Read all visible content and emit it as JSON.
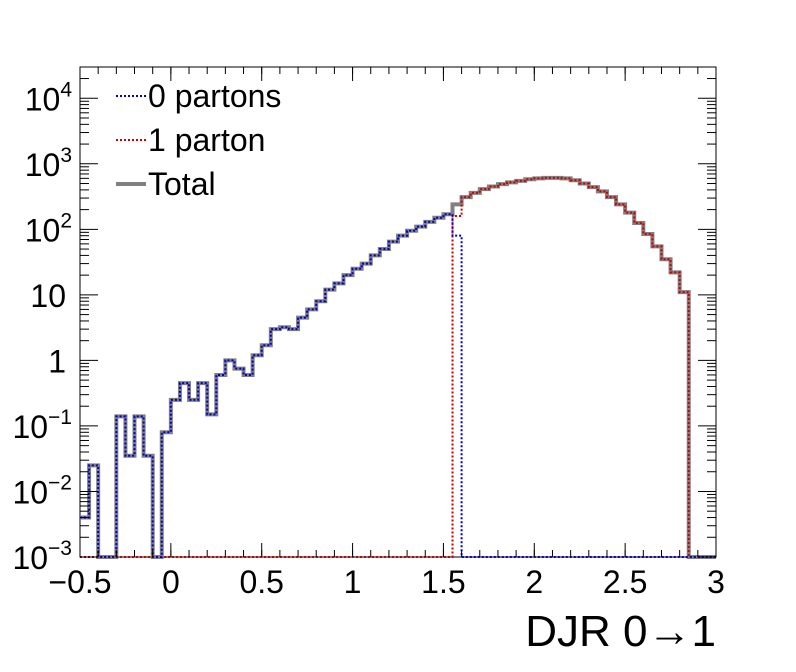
{
  "chart_data": {
    "type": "line",
    "step": true,
    "xlabel": "DJR 0→1",
    "ylabel": "",
    "xlim": [
      -0.5,
      3.0
    ],
    "ylim": [
      0.001,
      30000
    ],
    "log_y": true,
    "grid": false,
    "legend_position": "top-left",
    "x_ticks": [
      {
        "value": -0.5,
        "label": "−0.5"
      },
      {
        "value": 0,
        "label": "0"
      },
      {
        "value": 0.5,
        "label": "0.5"
      },
      {
        "value": 1,
        "label": "1"
      },
      {
        "value": 1.5,
        "label": "1.5"
      },
      {
        "value": 2,
        "label": "2"
      },
      {
        "value": 2.5,
        "label": "2.5"
      },
      {
        "value": 3,
        "label": "3"
      }
    ],
    "y_ticks": [
      {
        "value": 0.001,
        "base": "10",
        "exp": "−3"
      },
      {
        "value": 0.01,
        "base": "10",
        "exp": "−2"
      },
      {
        "value": 0.1,
        "base": "10",
        "exp": "−1"
      },
      {
        "value": 1,
        "base": "1",
        "exp": ""
      },
      {
        "value": 10,
        "base": "10",
        "exp": ""
      },
      {
        "value": 100,
        "base": "10",
        "exp": "2"
      },
      {
        "value": 1000,
        "base": "10",
        "exp": "3"
      },
      {
        "value": 10000,
        "base": "10",
        "exp": "4"
      }
    ],
    "bins": {
      "start": -0.5,
      "width": 0.05,
      "count": 70
    },
    "series": [
      {
        "name": "0 partons",
        "color": "#0000cc",
        "dash": "dotted",
        "values": [
          0.004,
          0.025,
          0.001,
          0.001,
          0.14,
          0.035,
          0.14,
          0.035,
          0.001,
          0.08,
          0.25,
          0.45,
          0.25,
          0.45,
          0.15,
          0.6,
          1.0,
          0.75,
          0.6,
          1.2,
          1.7,
          3.0,
          3.2,
          3.0,
          4.5,
          6.0,
          8.0,
          12.0,
          15.0,
          20.0,
          25.0,
          30.0,
          40.0,
          50.0,
          65.0,
          80.0,
          95.0,
          110.0,
          130.0,
          150.0,
          170.0,
          80.0,
          0.001,
          0.001,
          0.001,
          0.001,
          0.001,
          0.001,
          0.001,
          0.001,
          0.001,
          0.001,
          0.001,
          0.001,
          0.001,
          0.001,
          0.001,
          0.001,
          0.001,
          0.001,
          0.001,
          0.001,
          0.001,
          0.001,
          0.001,
          0.001,
          0.001,
          0.001,
          0.001,
          0.001
        ]
      },
      {
        "name": "1 parton",
        "color": "#cc0000",
        "dash": "dotted",
        "values": [
          0.001,
          0.001,
          0.001,
          0.001,
          0.001,
          0.001,
          0.001,
          0.001,
          0.001,
          0.001,
          0.001,
          0.001,
          0.001,
          0.001,
          0.001,
          0.001,
          0.001,
          0.001,
          0.001,
          0.001,
          0.001,
          0.001,
          0.001,
          0.001,
          0.001,
          0.001,
          0.001,
          0.001,
          0.001,
          0.001,
          0.001,
          0.001,
          0.001,
          0.001,
          0.001,
          0.001,
          0.001,
          0.001,
          0.001,
          0.001,
          0.001,
          160.0,
          310.0,
          360.0,
          410.0,
          450.0,
          490.0,
          520.0,
          550.0,
          580.0,
          600.0,
          610.0,
          610.0,
          600.0,
          560.0,
          500.0,
          440.0,
          380.0,
          310.0,
          240.0,
          180.0,
          125.0,
          85.0,
          55.0,
          35.0,
          22.0,
          11.0,
          0.001,
          0.001,
          0.001
        ]
      },
      {
        "name": "Total",
        "color": "#808080",
        "dash": "solid",
        "values": [
          0.004,
          0.025,
          0.001,
          0.001,
          0.14,
          0.035,
          0.14,
          0.035,
          0.001,
          0.08,
          0.25,
          0.45,
          0.25,
          0.45,
          0.15,
          0.6,
          1.0,
          0.75,
          0.6,
          1.2,
          1.7,
          3.0,
          3.2,
          3.0,
          4.5,
          6.0,
          8.0,
          12.0,
          15.0,
          20.0,
          25.0,
          30.0,
          40.0,
          50.0,
          65.0,
          80.0,
          95.0,
          110.0,
          130.0,
          150.0,
          170.0,
          240.0,
          310.0,
          360.0,
          410.0,
          450.0,
          490.0,
          520.0,
          550.0,
          580.0,
          600.0,
          610.0,
          610.0,
          600.0,
          560.0,
          500.0,
          440.0,
          380.0,
          310.0,
          240.0,
          180.0,
          125.0,
          85.0,
          55.0,
          35.0,
          22.0,
          11.0,
          0.001,
          0.001,
          0.001
        ]
      }
    ]
  }
}
